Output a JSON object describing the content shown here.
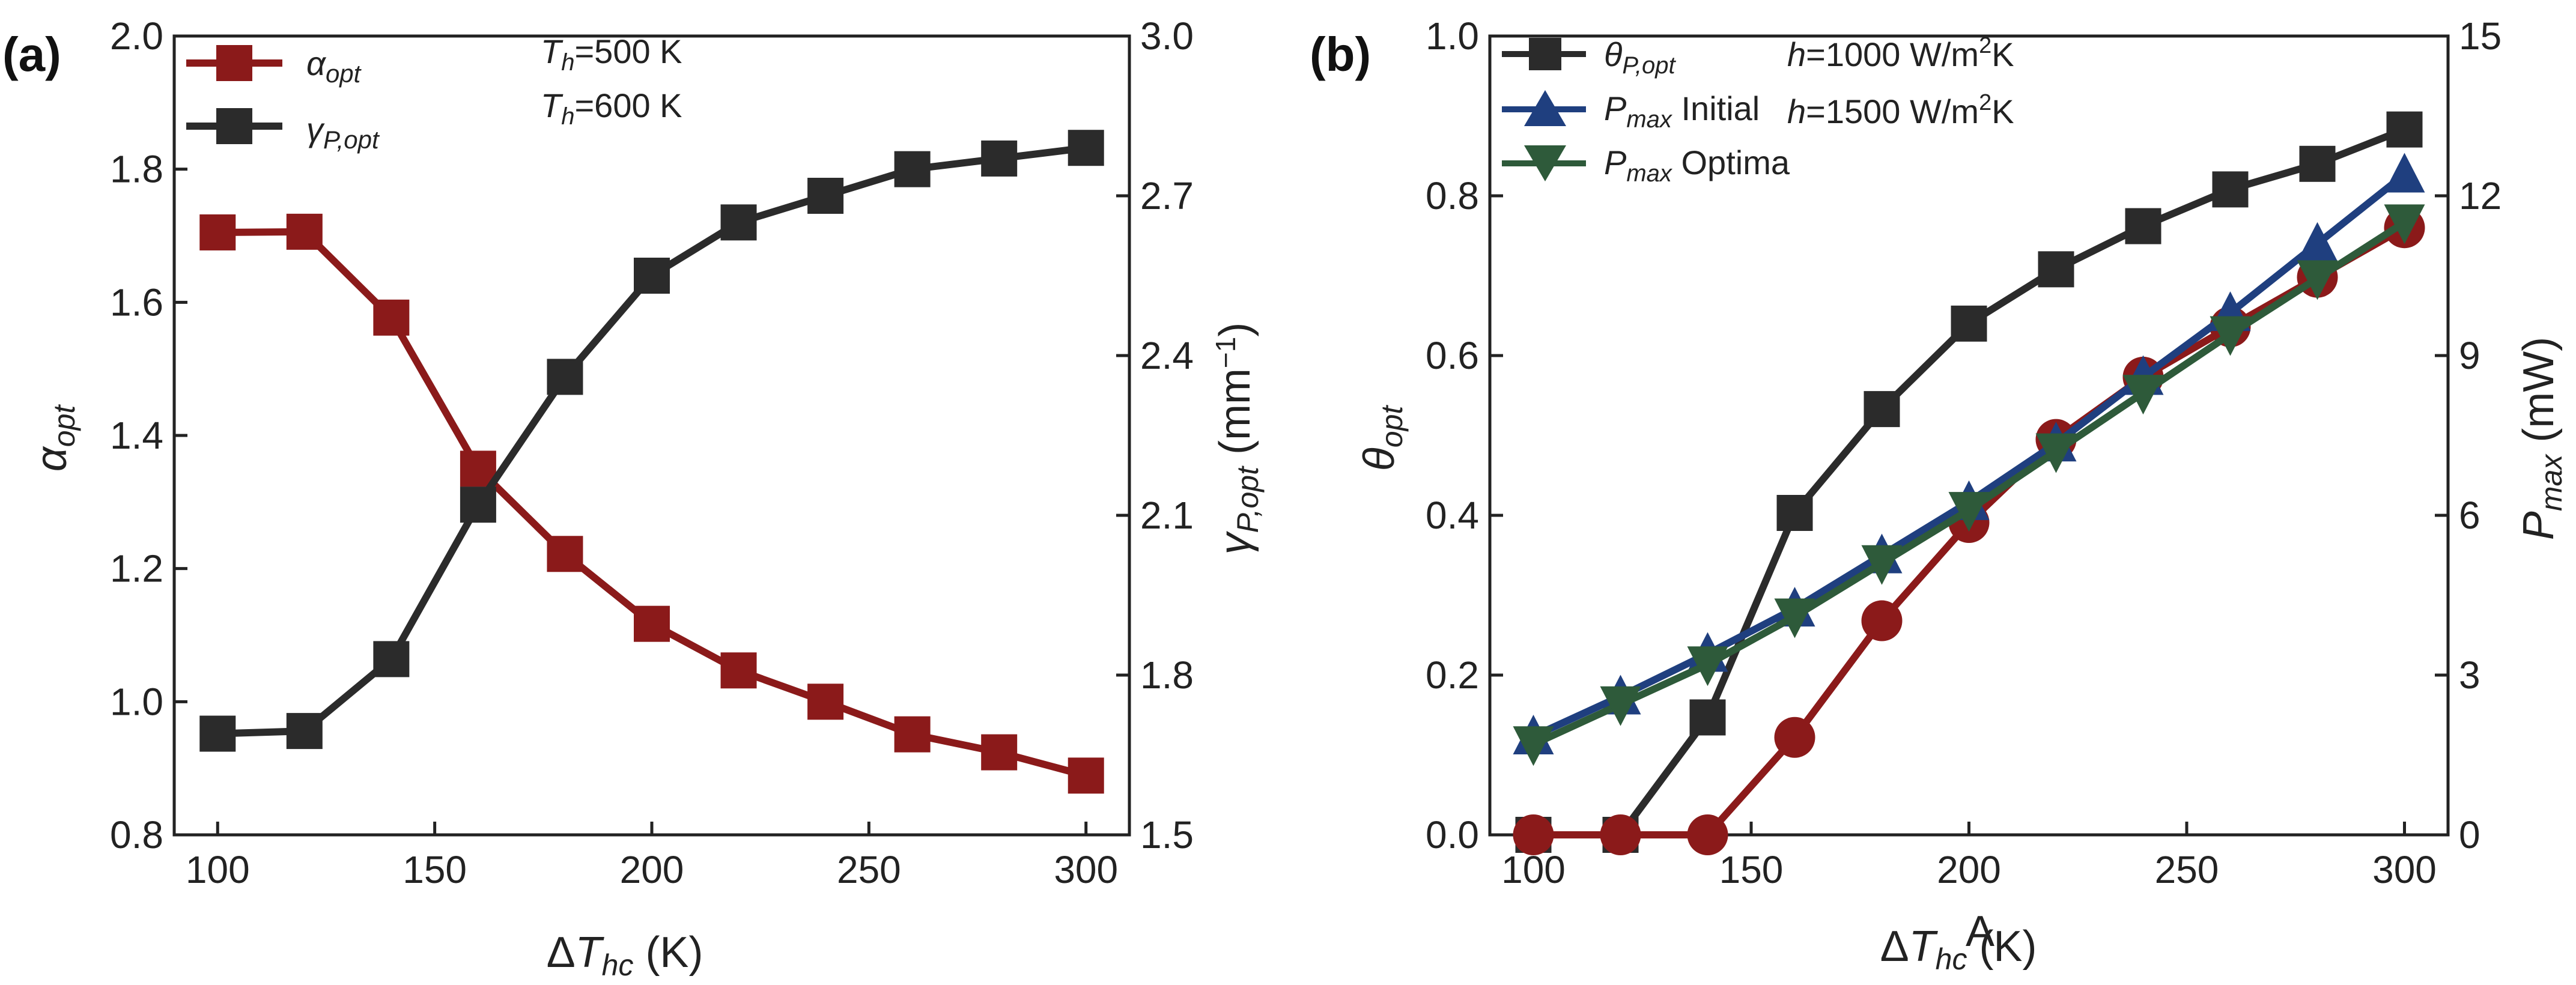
{
  "figure": {
    "panel_a_label": "(a)",
    "panel_b_label": "(b)"
  },
  "colors": {
    "black": "#2b2b2b",
    "red": "#8b1a1a",
    "blue": "#1f3f7f",
    "green": "#2e5a3a"
  },
  "chart_data": [
    {
      "type": "line",
      "panel": "(a)",
      "x": [
        100,
        120,
        140,
        160,
        180,
        200,
        220,
        240,
        260,
        280,
        300
      ],
      "xlim": [
        90,
        310
      ],
      "xticks": [
        100,
        150,
        200,
        250,
        300
      ],
      "xlabel": {
        "prefix": "Δ",
        "var": "T",
        "sub": "hc",
        "unit": " (K)"
      },
      "ylim_left": [
        0.8,
        2.0
      ],
      "yticks_left": [
        "0.8",
        "1.0",
        "1.2",
        "1.4",
        "1.6",
        "1.8",
        "2.0"
      ],
      "ylabel_left": {
        "var": "α",
        "sub": "opt",
        "unit": ""
      },
      "ylim_right": [
        1.5,
        3.0
      ],
      "yticks_right": [
        "1.5",
        "1.8",
        "2.1",
        "2.4",
        "2.7",
        "3.0"
      ],
      "ylabel_right": {
        "var": "γ",
        "sub": "P,opt",
        "unit": " (mm",
        "sup": "−1",
        "close": ")"
      },
      "series": [
        {
          "name": "α_opt",
          "legend_var": "α",
          "legend_sub": "opt",
          "legend_text": "",
          "axis": "left",
          "marker": "square",
          "color": "#8b1a1a",
          "values": [
            1.705,
            1.706,
            1.577,
            1.35,
            1.222,
            1.117,
            1.047,
            1.0,
            0.951,
            0.924,
            0.889
          ]
        },
        {
          "name": "γ_P,opt",
          "legend_var": "γ",
          "legend_sub": "P,opt",
          "legend_text": "",
          "axis": "right",
          "marker": "square",
          "color": "#2b2b2b",
          "values": [
            1.69,
            1.695,
            1.83,
            2.12,
            2.36,
            2.55,
            2.65,
            2.7,
            2.75,
            2.77,
            2.79
          ]
        }
      ],
      "annotations": [
        {
          "var": "T",
          "sub": "h",
          "text": "=500 K"
        },
        {
          "var": "T",
          "sub": "h",
          "text": "=600 K"
        }
      ]
    },
    {
      "type": "line",
      "panel": "(b)",
      "x": [
        100,
        120,
        140,
        160,
        180,
        200,
        220,
        240,
        260,
        280,
        300
      ],
      "xlim": [
        90,
        310
      ],
      "xticks": [
        100,
        150,
        200,
        250,
        300
      ],
      "xlabel": {
        "prefix": "Δ",
        "var": "T",
        "sub": "hc",
        "unit": " (K)"
      },
      "xlabel_overlay": "A",
      "ylim_left": [
        0.0,
        1.0
      ],
      "yticks_left": [
        "0.0",
        "0.2",
        "0.4",
        "0.6",
        "0.8",
        "1.0"
      ],
      "ylabel_left": {
        "var": "θ",
        "sub": "opt",
        "unit": ""
      },
      "ylim_right": [
        0,
        15
      ],
      "yticks_right": [
        "0",
        "3",
        "6",
        "9",
        "12",
        "15"
      ],
      "ylabel_right": {
        "var": "P",
        "sub": "max",
        "unit": " (mW)"
      },
      "series": [
        {
          "name": "θ_P,opt",
          "legend_var": "θ",
          "legend_sub": "P,opt",
          "legend_text": "",
          "axis": "left",
          "marker": "square",
          "color": "#2b2b2b",
          "values": [
            0.0,
            0.0,
            0.147,
            0.403,
            0.533,
            0.64,
            0.708,
            0.762,
            0.808,
            0.84,
            0.883
          ]
        },
        {
          "name": "red θ series",
          "axis": "left",
          "marker": "circle",
          "color": "#8b1a1a",
          "no_legend": true,
          "values": [
            0.0,
            0.0,
            0.0,
            0.122,
            0.268,
            0.391,
            0.495,
            0.573,
            0.636,
            0.698,
            0.76
          ]
        },
        {
          "name": "P_max Initial",
          "legend_var": "P",
          "legend_sub": "max",
          "legend_text": " Initial",
          "axis": "right",
          "marker": "triangle-up",
          "color": "#1f3f7f",
          "values": [
            1.85,
            2.6,
            3.4,
            4.25,
            5.25,
            6.25,
            7.35,
            8.6,
            9.8,
            11.1,
            12.4
          ]
        },
        {
          "name": "P_max Optima",
          "legend_var": "P",
          "legend_sub": "max",
          "legend_text": " Optima",
          "axis": "right",
          "marker": "triangle-down",
          "color": "#2e5a3a",
          "values": [
            1.7,
            2.45,
            3.2,
            4.1,
            5.1,
            6.1,
            7.2,
            8.3,
            9.4,
            10.45,
            11.5
          ]
        }
      ],
      "annotations": [
        {
          "var": "h",
          "sub": "",
          "text": "=1000 W/m",
          "sup": "2",
          "tail": "K"
        },
        {
          "var": "h",
          "sub": "",
          "text": "=1500 W/m",
          "sup": "2",
          "tail": "K"
        }
      ]
    }
  ]
}
